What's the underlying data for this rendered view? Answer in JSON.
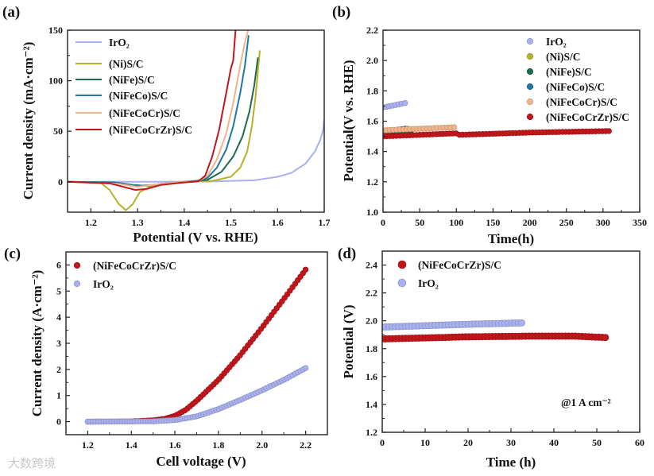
{
  "watermark": "大数跨境",
  "colors": {
    "IrO2": "#a9b0ee",
    "Ni": "#b5b22a",
    "NiFe": "#1d6b4f",
    "NiFeCo": "#1f76a8",
    "NiFeCoCr": "#f0b48a",
    "NiFeCoCrZr": "#c0161c"
  },
  "chart_data": [
    {
      "panel": "(a)",
      "type": "line",
      "xlabel": "Potential (V vs. RHE)",
      "ylabel": "Current density (mA·cm⁻²)",
      "xlim": [
        1.15,
        1.7
      ],
      "ylim": [
        -30,
        150
      ],
      "xticks": [
        1.2,
        1.3,
        1.4,
        1.5,
        1.6,
        1.7
      ],
      "xtick_labels": [
        "1.2",
        "1.3",
        "1.4",
        "1.5",
        "1.6",
        "1.7"
      ],
      "yticks": [
        0,
        50,
        100,
        150
      ],
      "ytick_labels": [
        "0",
        "50",
        "100",
        "150"
      ],
      "legend_position": "top-left",
      "series": [
        {
          "name": "IrO₂",
          "color_key": "IrO2",
          "points": [
            [
              1.15,
              0
            ],
            [
              1.3,
              0
            ],
            [
              1.45,
              0.3
            ],
            [
              1.55,
              1.5
            ],
            [
              1.6,
              5
            ],
            [
              1.63,
              9
            ],
            [
              1.66,
              18
            ],
            [
              1.68,
              30
            ],
            [
              1.692,
              42
            ],
            [
              1.698,
              52
            ],
            [
              1.7,
              62
            ]
          ]
        },
        {
          "name": "(Ni)S/C",
          "color_key": "Ni",
          "points": [
            [
              1.15,
              0
            ],
            [
              1.22,
              -0.5
            ],
            [
              1.24,
              -8
            ],
            [
              1.26,
              -22
            ],
            [
              1.275,
              -28
            ],
            [
              1.29,
              -22
            ],
            [
              1.305,
              -10
            ],
            [
              1.33,
              -4
            ],
            [
              1.36,
              -1.5
            ],
            [
              1.4,
              0
            ],
            [
              1.46,
              1
            ],
            [
              1.5,
              5
            ],
            [
              1.52,
              14
            ],
            [
              1.535,
              30
            ],
            [
              1.545,
              55
            ],
            [
              1.553,
              85
            ],
            [
              1.558,
              110
            ],
            [
              1.562,
              130
            ]
          ]
        },
        {
          "name": "(NiFe)S/C",
          "color_key": "NiFe",
          "points": [
            [
              1.15,
              0
            ],
            [
              1.25,
              -0.5
            ],
            [
              1.29,
              -3
            ],
            [
              1.32,
              -4
            ],
            [
              1.35,
              -2
            ],
            [
              1.4,
              0
            ],
            [
              1.45,
              2
            ],
            [
              1.48,
              10
            ],
            [
              1.505,
              25
            ],
            [
              1.525,
              45
            ],
            [
              1.54,
              70
            ],
            [
              1.55,
              95
            ],
            [
              1.558,
              123
            ]
          ]
        },
        {
          "name": "(NiFeCo)S/C",
          "color_key": "NiFeCo",
          "points": [
            [
              1.15,
              0
            ],
            [
              1.26,
              -1
            ],
            [
              1.3,
              -4
            ],
            [
              1.33,
              -3
            ],
            [
              1.37,
              -1
            ],
            [
              1.42,
              0
            ],
            [
              1.45,
              4
            ],
            [
              1.47,
              14
            ],
            [
              1.49,
              32
            ],
            [
              1.505,
              55
            ],
            [
              1.52,
              88
            ],
            [
              1.53,
              115
            ],
            [
              1.538,
              145
            ]
          ]
        },
        {
          "name": "(NiFeCoCr)S/C",
          "color_key": "NiFeCoCr",
          "points": [
            [
              1.15,
              0
            ],
            [
              1.26,
              -2
            ],
            [
              1.3,
              -5
            ],
            [
              1.33,
              -3
            ],
            [
              1.38,
              -0.5
            ],
            [
              1.43,
              0.5
            ],
            [
              1.45,
              6
            ],
            [
              1.47,
              22
            ],
            [
              1.49,
              48
            ],
            [
              1.505,
              78
            ],
            [
              1.52,
              115
            ],
            [
              1.53,
              138
            ],
            [
              1.537,
              150
            ]
          ]
        },
        {
          "name": "(NiFeCoCrZr)S/C",
          "color_key": "NiFeCoCrZr",
          "points": [
            [
              1.15,
              0
            ],
            [
              1.24,
              -1.5
            ],
            [
              1.27,
              -5
            ],
            [
              1.295,
              -8
            ],
            [
              1.32,
              -7
            ],
            [
              1.35,
              -3
            ],
            [
              1.39,
              -1
            ],
            [
              1.43,
              0.5
            ],
            [
              1.445,
              6
            ],
            [
              1.46,
              25
            ],
            [
              1.475,
              52
            ],
            [
              1.49,
              88
            ],
            [
              1.5,
              112
            ],
            [
              1.505,
              120
            ],
            [
              1.51,
              150
            ]
          ]
        }
      ]
    },
    {
      "panel": "(b)",
      "type": "scatter",
      "xlabel": "Time(h)",
      "ylabel": "Potential(V vs. RHE)",
      "xlim": [
        0,
        350
      ],
      "ylim": [
        1.0,
        2.2
      ],
      "xticks": [
        0,
        50,
        100,
        150,
        200,
        250,
        300,
        350
      ],
      "xtick_labels": [
        "0",
        "50",
        "100",
        "150",
        "200",
        "250",
        "300",
        "350"
      ],
      "yticks": [
        1.0,
        1.2,
        1.4,
        1.6,
        1.8,
        2.0,
        2.2
      ],
      "ytick_labels": [
        "1.0",
        "1.2",
        "1.4",
        "1.6",
        "1.8",
        "2.0",
        "2.2"
      ],
      "legend_position": "top-right",
      "series": [
        {
          "name": "IrO₂",
          "color_key": "IrO2",
          "points": [
            [
              0,
              1.69
            ],
            [
              30,
              1.72
            ]
          ]
        },
        {
          "name": "(Ni)S/C",
          "color_key": "Ni",
          "points": [
            [
              0,
              1.53
            ],
            [
              33,
              1.55
            ]
          ]
        },
        {
          "name": "(NiFe)S/C",
          "color_key": "NiFe",
          "points": [
            [
              0,
              1.52
            ],
            [
              38,
              1.54
            ]
          ]
        },
        {
          "name": "(NiFeCo)S/C",
          "color_key": "NiFeCo",
          "points": [
            [
              0,
              1.53
            ],
            [
              30,
              1.55
            ]
          ]
        },
        {
          "name": "(NiFeCoCr)S/C",
          "color_key": "NiFeCoCr",
          "points": [
            [
              0,
              1.54
            ],
            [
              97,
              1.56
            ]
          ]
        },
        {
          "name": "(NiFeCoCrZr)S/C",
          "color_key": "NiFeCoCrZr",
          "points": [
            [
              0,
              1.5
            ],
            [
              100,
              1.52
            ],
            [
              103,
              1.51
            ],
            [
              200,
              1.525
            ],
            [
              308,
              1.535
            ]
          ]
        }
      ]
    },
    {
      "panel": "(c)",
      "type": "scatter",
      "xlabel": "Cell voltage (V)",
      "ylabel": "Current density (A·cm⁻²)",
      "xlim": [
        1.1,
        2.3
      ],
      "ylim": [
        -0.5,
        6.5
      ],
      "xticks": [
        1.2,
        1.4,
        1.6,
        1.8,
        2.0,
        2.2
      ],
      "xtick_labels": [
        "1.2",
        "1.4",
        "1.6",
        "1.8",
        "2.0",
        "2.2"
      ],
      "yticks": [
        0,
        1,
        2,
        3,
        4,
        5,
        6
      ],
      "ytick_labels": [
        "0",
        "1",
        "2",
        "3",
        "4",
        "5",
        "6"
      ],
      "legend_position": "top-left",
      "series": [
        {
          "name": "(NiFeCoCrZr)S/C",
          "color_key": "NiFeCoCrZr",
          "points": [
            [
              1.2,
              0
            ],
            [
              1.4,
              0.01
            ],
            [
              1.5,
              0.05
            ],
            [
              1.55,
              0.1
            ],
            [
              1.6,
              0.22
            ],
            [
              1.65,
              0.45
            ],
            [
              1.7,
              0.8
            ],
            [
              1.8,
              1.6
            ],
            [
              1.9,
              2.55
            ],
            [
              2.0,
              3.6
            ],
            [
              2.1,
              4.7
            ],
            [
              2.2,
              5.82
            ]
          ]
        },
        {
          "name": "IrO₂",
          "color_key": "IrO2",
          "points": [
            [
              1.2,
              0
            ],
            [
              1.5,
              0.01
            ],
            [
              1.6,
              0.06
            ],
            [
              1.7,
              0.2
            ],
            [
              1.8,
              0.48
            ],
            [
              1.9,
              0.83
            ],
            [
              2.0,
              1.2
            ],
            [
              2.1,
              1.6
            ],
            [
              2.2,
              2.05
            ]
          ]
        }
      ]
    },
    {
      "panel": "(d)",
      "type": "scatter",
      "xlabel": "Time (h)",
      "ylabel": "Potential (V)",
      "annotation": "@1 A cm⁻²",
      "xlim": [
        0,
        60
      ],
      "ylim": [
        1.2,
        2.5
      ],
      "xticks": [
        0,
        10,
        20,
        30,
        40,
        50,
        60
      ],
      "xtick_labels": [
        "0",
        "10",
        "20",
        "30",
        "40",
        "50",
        "60"
      ],
      "yticks": [
        1.2,
        1.4,
        1.6,
        1.8,
        2.0,
        2.2,
        2.4
      ],
      "ytick_labels": [
        "1.2",
        "1.4",
        "1.6",
        "1.8",
        "2.0",
        "2.2",
        "2.4"
      ],
      "legend_position": "top-left",
      "series": [
        {
          "name": "(NiFeCoCrZr)S/C",
          "color_key": "NiFeCoCrZr",
          "points": [
            [
              0,
              1.87
            ],
            [
              20,
              1.885
            ],
            [
              35,
              1.89
            ],
            [
              45,
              1.89
            ],
            [
              52,
              1.88
            ]
          ]
        },
        {
          "name": "IrO₂",
          "color_key": "IrO2",
          "points": [
            [
              0,
              1.955
            ],
            [
              10,
              1.965
            ],
            [
              20,
              1.975
            ],
            [
              32.5,
              1.985
            ]
          ]
        }
      ]
    }
  ]
}
